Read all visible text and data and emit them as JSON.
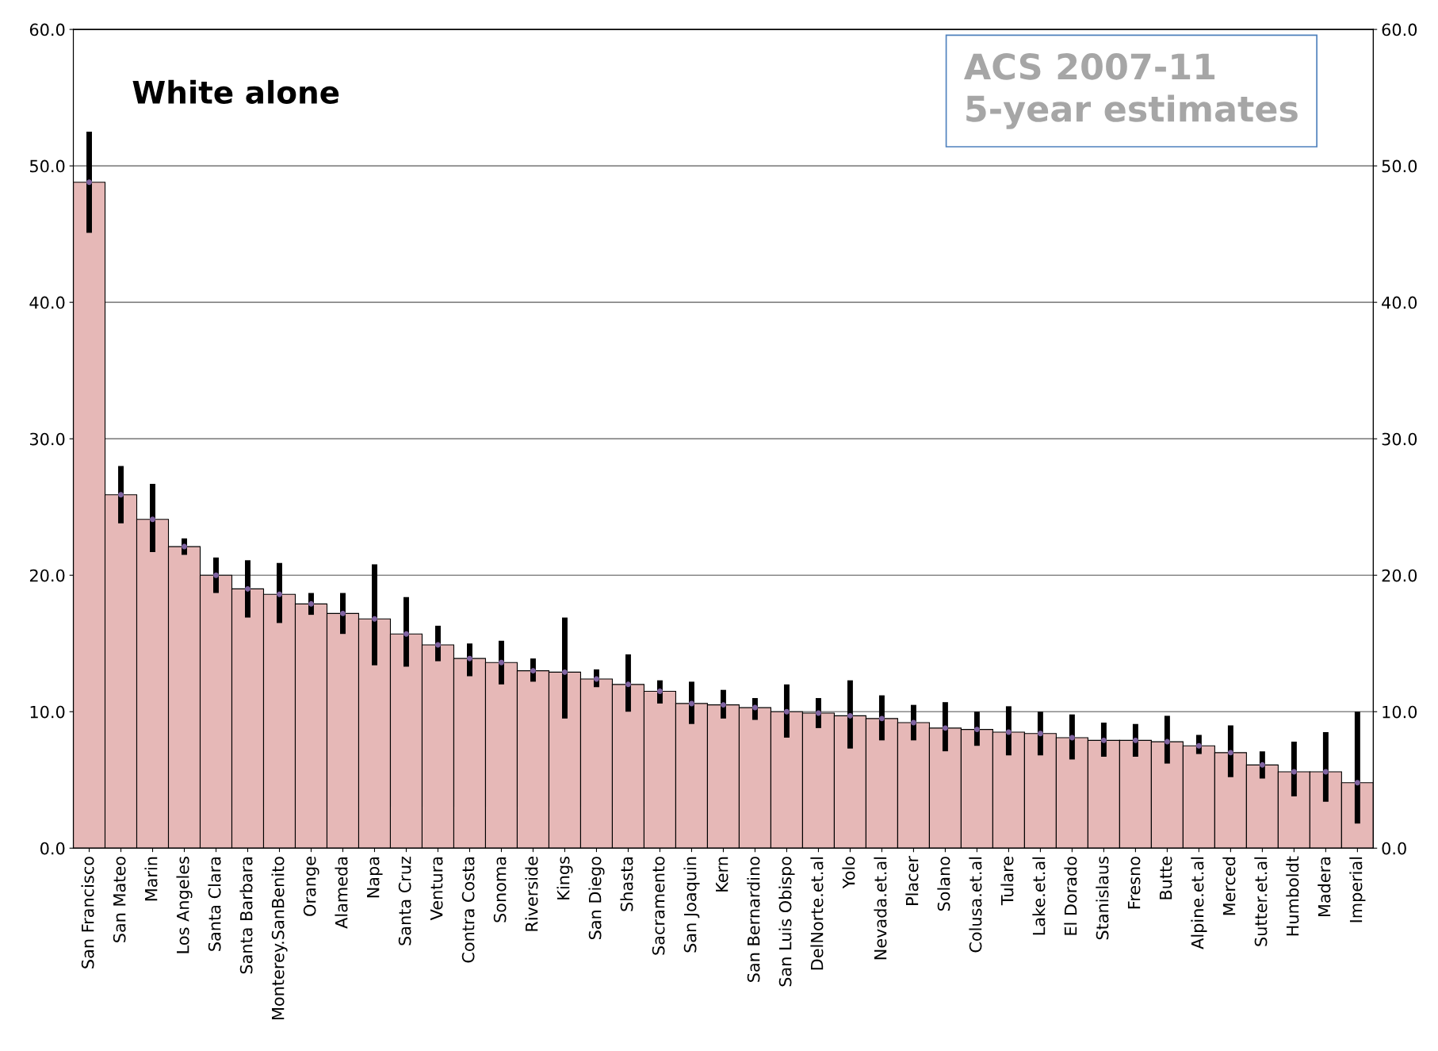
{
  "chart_data": {
    "type": "bar",
    "title": "White alone",
    "annotations": [
      "ACS 2007-11\n5-year estimates"
    ],
    "categories": [
      "San Francisco",
      "San Mateo",
      "Marin",
      "Los Angeles",
      "Santa Clara",
      "Santa Barbara",
      "Monterey.SanBenito",
      "Orange",
      "Alameda",
      "Napa",
      "Santa Cruz",
      "Ventura",
      "Contra Costa",
      "Sonoma",
      "Riverside",
      "Kings",
      "San Diego",
      "Shasta",
      "Sacramento",
      "San Joaquin",
      "Kern",
      "San Bernardino",
      "San Luis Obispo",
      "DelNorte.et.al",
      "Yolo",
      "Nevada.et.al",
      "Placer",
      "Solano",
      "Colusa.et.al",
      "Tulare",
      "Lake.et.al",
      "El Dorado",
      "Stanislaus",
      "Fresno",
      "Butte",
      "Alpine.et.al",
      "Merced",
      "Sutter.et.al",
      "Humboldt",
      "Madera",
      "Imperial"
    ],
    "series": [
      {
        "color": "#e6b8b7",
        "values": [
          48.8,
          25.9,
          24.1,
          22.1,
          20.0,
          19.0,
          18.6,
          17.9,
          17.2,
          16.8,
          15.7,
          14.9,
          13.9,
          13.6,
          13.0,
          12.9,
          12.4,
          12.0,
          11.5,
          10.6,
          10.5,
          10.3,
          10.0,
          9.9,
          9.7,
          9.5,
          9.2,
          8.8,
          8.7,
          8.5,
          8.4,
          8.1,
          7.9,
          7.9,
          7.8,
          7.5,
          7.0,
          6.1,
          5.6,
          5.6,
          4.8
        ],
        "errors": [
          [
            45.1,
            52.5
          ],
          [
            23.8,
            28.0
          ],
          [
            21.7,
            26.7
          ],
          [
            21.5,
            22.7
          ],
          [
            18.7,
            21.3
          ],
          [
            16.9,
            21.1
          ],
          [
            16.5,
            20.9
          ],
          [
            17.1,
            18.7
          ],
          [
            15.7,
            18.7
          ],
          [
            13.4,
            20.8
          ],
          [
            13.3,
            18.4
          ],
          [
            13.7,
            16.3
          ],
          [
            12.6,
            15.0
          ],
          [
            12.0,
            15.2
          ],
          [
            12.2,
            13.9
          ],
          [
            9.5,
            16.9
          ],
          [
            11.8,
            13.1
          ],
          [
            10.0,
            14.2
          ],
          [
            10.6,
            12.3
          ],
          [
            9.1,
            12.2
          ],
          [
            9.5,
            11.6
          ],
          [
            9.4,
            11.0
          ],
          [
            8.1,
            12.0
          ],
          [
            8.8,
            11.0
          ],
          [
            7.3,
            12.3
          ],
          [
            7.9,
            11.2
          ],
          [
            7.9,
            10.5
          ],
          [
            7.1,
            10.7
          ],
          [
            7.5,
            10.0
          ],
          [
            6.8,
            10.4
          ],
          [
            6.8,
            10.0
          ],
          [
            6.5,
            9.8
          ],
          [
            6.7,
            9.2
          ],
          [
            6.7,
            9.1
          ],
          [
            6.2,
            9.7
          ],
          [
            6.9,
            8.3
          ],
          [
            5.2,
            9.0
          ],
          [
            5.1,
            7.1
          ],
          [
            3.8,
            7.8
          ],
          [
            3.4,
            8.5
          ],
          [
            1.8,
            10.0
          ]
        ]
      },
      {
        "type": "scatter",
        "color": "#8064a2",
        "marker": "circle",
        "x": [
          "San Francisco",
          "San Mateo",
          "Marin",
          "Los Angeles",
          "Santa Clara",
          "Santa Barbara",
          "Monterey.SanBenito",
          "Orange",
          "Alameda",
          "Napa",
          "Santa Cruz",
          "Ventura",
          "Contra Costa",
          "Sonoma",
          "Riverside",
          "Kings",
          "San Diego",
          "Shasta",
          "Sacramento",
          "San Joaquin",
          "Kern",
          "San Bernardino",
          "San Luis Obispo",
          "DelNorte.et.al",
          "Yolo",
          "Nevada.et.al",
          "Placer",
          "Solano",
          "Colusa.et.al",
          "Tulare",
          "Lake.et.al",
          "El Dorado",
          "Stanislaus",
          "Fresno",
          "Butte",
          "Alpine.et.al",
          "Merced",
          "Sutter.et.al",
          "Humboldt",
          "Madera",
          "Imperial"
        ],
        "values": [
          48.8,
          25.9,
          24.1,
          22.1,
          20.0,
          19.0,
          18.6,
          17.9,
          17.2,
          16.8,
          15.7,
          14.9,
          13.9,
          13.6,
          13.0,
          12.9,
          12.4,
          12.0,
          11.5,
          10.6,
          10.5,
          10.3,
          10.0,
          9.9,
          9.7,
          9.5,
          9.2,
          8.8,
          8.7,
          8.5,
          8.4,
          8.1,
          7.9,
          7.9,
          7.8,
          7.5,
          7.0,
          6.1,
          5.6,
          5.6,
          4.8
        ]
      }
    ],
    "ylim": [
      0,
      60
    ],
    "yticks": [
      {
        "value": 0,
        "label": "0.0"
      },
      {
        "value": 10,
        "label": "10.0"
      },
      {
        "value": 20,
        "label": "20.0"
      },
      {
        "value": 30,
        "label": "30.0"
      },
      {
        "value": 40,
        "label": "40.0"
      },
      {
        "value": 50,
        "label": "50.0"
      },
      {
        "value": 60,
        "label": "60.0"
      }
    ],
    "y2lim": [
      0,
      60
    ],
    "y2ticks": [
      {
        "value": 0,
        "label": "0.0"
      },
      {
        "value": 10,
        "label": "10.0"
      },
      {
        "value": 20,
        "label": "20.0"
      },
      {
        "value": 30,
        "label": "30.0"
      },
      {
        "value": 40,
        "label": "40.0"
      },
      {
        "value": 50,
        "label": "50.0"
      },
      {
        "value": 60,
        "label": "60.0"
      }
    ],
    "grid": "y"
  }
}
